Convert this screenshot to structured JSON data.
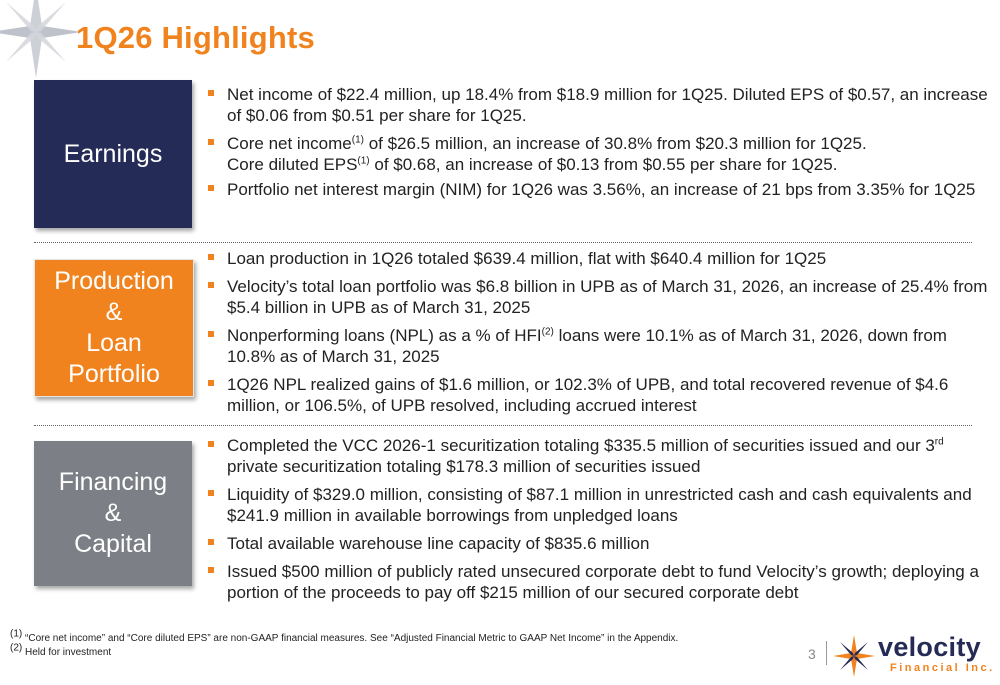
{
  "slide": {
    "title": "1Q26 Highlights",
    "page_number": "3"
  },
  "sections": {
    "earnings": {
      "label": [
        "Earnings"
      ],
      "bullets": [
        "Net income of $22.4 million, up 18.4% from $18.9 million for 1Q25. Diluted EPS of $0.57, an increase of $0.06 from $0.51 per share for 1Q25.",
        {
          "pre": "Core net income",
          "sup": "(1)",
          "post": " of $26.5 million, an increase of 30.8% from $20.3 million for 1Q25."
        },
        {
          "pre": "Core diluted EPS",
          "sup": "(1)",
          "post": " of $0.68, an increase of $0.13 from $0.55 per share for 1Q25."
        },
        "Portfolio net interest margin (NIM) for 1Q26 was 3.56%, an increase of 21 bps from 3.35% for 1Q25"
      ]
    },
    "production": {
      "label": [
        "Production",
        "&",
        "Loan",
        "Portfolio"
      ],
      "bullets": [
        "Loan production in 1Q26 totaled $639.4 million, flat with $640.4 million for 1Q25",
        "Velocity’s total loan portfolio was $6.8 billion in UPB as of March 31, 2026, an increase of 25.4% from $5.4 billion in UPB as of March 31, 2025",
        {
          "pre": "Nonperforming loans (NPL) as a % of HFI",
          "sup": "(2)",
          "post": " loans were 10.1% as of March 31, 2026, down from 10.8% as of March 31, 2025"
        },
        "1Q26 NPL realized gains of $1.6 million, or 102.3% of UPB, and total recovered revenue of $4.6 million, or 106.5%, of UPB resolved, including accrued interest"
      ]
    },
    "financing": {
      "label": [
        "Financing",
        "&",
        "Capital"
      ],
      "bullets": [
        {
          "pre": "Completed the VCC 2026-1 securitization totaling $335.5 million of securities issued and our 3",
          "sup": "rd",
          "post": " private securitization totaling $178.3 million of securities issued"
        },
        "Liquidity of $329.0 million, consisting of $87.1 million in unrestricted cash and cash equivalents and $241.9 million in available borrowings from unpledged loans",
        "Total available warehouse line capacity of $835.6 million",
        "Issued $500 million of publicly rated unsecured corporate debt to fund Velocity’s growth; deploying a portion of the proceeds to pay off $215 million of our secured corporate debt"
      ]
    }
  },
  "footnotes": [
    {
      "marker": "(1)",
      "text": " “Core net income” and “Core diluted EPS” are non-GAAP financial measures. See “Adjusted Financial Metric to GAAP Net Income” in the Appendix."
    },
    {
      "marker": "(2)",
      "text": " Held for investment"
    }
  ],
  "logo": {
    "name": "velocity",
    "subtitle": "Financial Inc."
  },
  "colors": {
    "accent_orange": "#f0831e",
    "navy": "#252b57",
    "gray": "#7c7f85",
    "text": "#222222"
  }
}
